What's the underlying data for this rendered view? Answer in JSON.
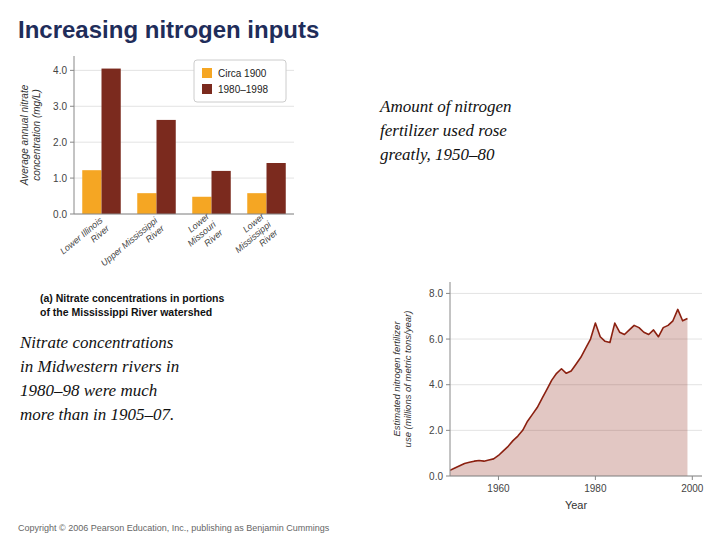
{
  "title": "Increasing nitrogen inputs",
  "annotations": [
    "Copyright © 2006 Pearson Education, Inc., publishing as Benjamin Cummings"
  ],
  "chart_data": [
    {
      "type": "bar",
      "categories": [
        "Lower Illinois\nRiver",
        "Upper Mississippi\nRiver",
        "Lower\nMissouri\nRiver",
        "Lower\nMississippi\nRiver"
      ],
      "series": [
        {
          "name": "Circa 1900",
          "color": "#f5a623",
          "values": [
            1.22,
            0.58,
            0.48,
            0.58
          ]
        },
        {
          "name": "1980–1998",
          "color": "#7b2a1e",
          "values": [
            4.05,
            2.62,
            1.2,
            1.42
          ]
        }
      ],
      "y_label": "Average annual nitrate\nconcentration (mg/L)",
      "ylim": [
        0,
        4.4
      ],
      "yticks": [
        {
          "value": 0.0,
          "label": "0.0"
        },
        {
          "value": 1.0,
          "label": "1.0"
        },
        {
          "value": 2.0,
          "label": "2.0"
        },
        {
          "value": 3.0,
          "label": "3.0"
        },
        {
          "value": 4.0,
          "label": "4.0"
        }
      ],
      "grid": true,
      "legend": "upper right",
      "annotations": [
        "(a) Nitrate concentrations in portions",
        "of the Mississippi River watershed",
        "Nitrate concentrations\nin Midwestern rivers in\n1980–98 were much\nmore than in 1905–07."
      ]
    },
    {
      "type": "area",
      "x": [
        1950,
        1951,
        1952,
        1953,
        1954,
        1955,
        1956,
        1957,
        1958,
        1959,
        1960,
        1961,
        1962,
        1963,
        1964,
        1965,
        1966,
        1967,
        1968,
        1969,
        1970,
        1971,
        1972,
        1973,
        1974,
        1975,
        1976,
        1977,
        1978,
        1979,
        1980,
        1981,
        1982,
        1983,
        1984,
        1985,
        1986,
        1987,
        1988,
        1989,
        1990,
        1991,
        1992,
        1993,
        1994,
        1995,
        1996,
        1997,
        1998,
        1999
      ],
      "values": [
        0.25,
        0.35,
        0.45,
        0.55,
        0.6,
        0.65,
        0.68,
        0.65,
        0.7,
        0.75,
        0.9,
        1.1,
        1.3,
        1.55,
        1.75,
        2.0,
        2.4,
        2.7,
        3.0,
        3.4,
        3.8,
        4.2,
        4.5,
        4.7,
        4.5,
        4.6,
        4.9,
        5.2,
        5.6,
        6.0,
        6.7,
        6.1,
        5.9,
        5.85,
        6.7,
        6.3,
        6.2,
        6.4,
        6.6,
        6.5,
        6.3,
        6.2,
        6.4,
        6.1,
        6.5,
        6.6,
        6.8,
        7.3,
        6.8,
        6.9
      ],
      "color": "#8b2010",
      "x_label": "Year",
      "y_label": "Estimated nitrogen fertilizer\nuse (millions of metric tons/year)",
      "xlim": [
        1950,
        2002
      ],
      "xticks": [
        1960,
        1980,
        2000
      ],
      "ylim": [
        0,
        8.5
      ],
      "yticks": [
        {
          "value": 0.0,
          "label": "0.0"
        },
        {
          "value": 2.0,
          "label": "2.0"
        },
        {
          "value": 4.0,
          "label": "4.0"
        },
        {
          "value": 6.0,
          "label": "6.0"
        },
        {
          "value": 8.0,
          "label": "8.0"
        }
      ],
      "grid": true,
      "annotations": [
        "Amount of nitrogen\nfertilizer used rose\ngreatly, 1950–80"
      ]
    }
  ]
}
